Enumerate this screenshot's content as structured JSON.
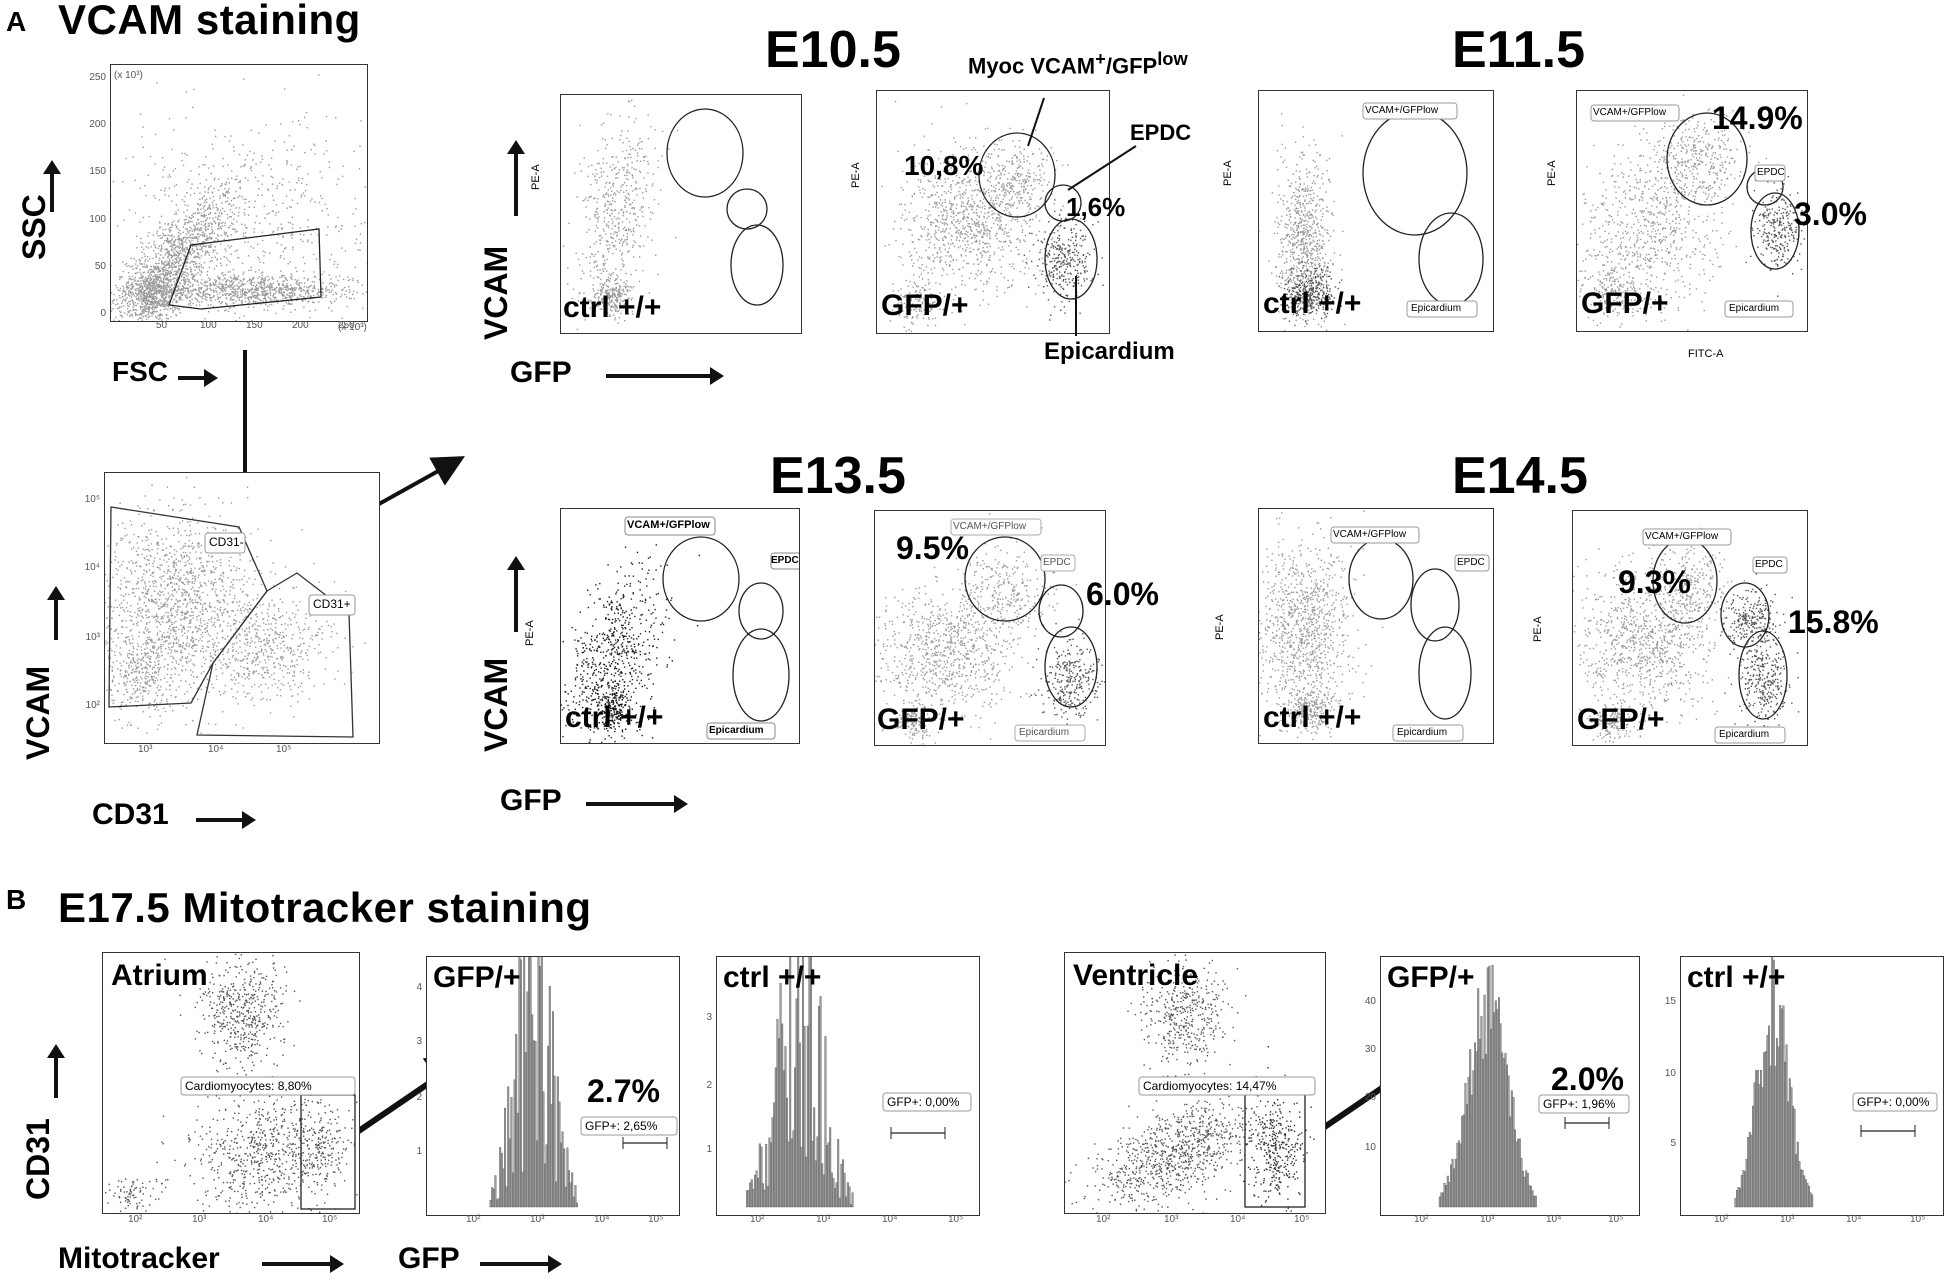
{
  "panel_a": {
    "letter": "A",
    "title": "VCAM staining",
    "fsc_ssc": {
      "ylabel": "SSC",
      "xlabel": "FSC",
      "xunit": "(x 10³)",
      "yunit": "(x 10³)",
      "xticks": [
        "0",
        "50",
        "100",
        "150",
        "200",
        "250"
      ],
      "yticks": [
        "0",
        "50",
        "100",
        "150",
        "200",
        "250"
      ]
    },
    "cd31_vcam": {
      "ylabel": "VCAM",
      "xlabel": "CD31",
      "gate_neg": "CD31-",
      "gate_pos": "CD31+"
    },
    "stages": [
      {
        "name": "E10.5",
        "ctrl": {
          "label": "ctrl +/+",
          "ylabel": "PE-A"
        },
        "gfp": {
          "label": "GFP/+",
          "ylabel": "PE-A",
          "pct_myoc": "10,8%",
          "pct_epdc": "1,6%",
          "callout_myoc_main": "Myoc VCAM",
          "callout_myoc_sup": "+",
          "callout_myoc_mid": "/GFP",
          "callout_myoc_sup2": "low",
          "callout_epdc": "EPDC",
          "callout_epi": "Epicardium"
        }
      },
      {
        "name": "E11.5",
        "ctrl": {
          "label": "ctrl +/+",
          "ylabel": "PE-A",
          "gate_vcam": "VCAM+/GFPlow",
          "gate_epi": "Epicardium"
        },
        "gfp": {
          "label": "GFP/+",
          "ylabel": "PE-A",
          "xlabel": "FITC-A",
          "gate_vcam": "VCAM+/GFPlow",
          "gate_epdc": "EPDC",
          "gate_epi": "Epicardium",
          "pct_myoc": "14.9%",
          "pct_epdc": "3.0%"
        }
      },
      {
        "name": "E13.5",
        "ctrl": {
          "label": "ctrl +/+",
          "ylabel": "PE-A",
          "gate_vcam": "VCAM+/GFPlow",
          "gate_epdc": "EPDC",
          "gate_epi": "Epicardium"
        },
        "gfp": {
          "label": "GFP/+",
          "gate_vcam": "VCAM+/GFPlow",
          "gate_epdc": "EPDC",
          "gate_epi": "Epicardium",
          "pct_myoc": "9.5%",
          "pct_epdc": "6.0%"
        }
      },
      {
        "name": "E14.5",
        "ctrl": {
          "label": "ctrl +/+",
          "ylabel": "PE-A",
          "gate_vcam": "VCAM+/GFPlow",
          "gate_epdc": "EPDC",
          "gate_epi": "Epicardium"
        },
        "gfp": {
          "label": "GFP/+",
          "ylabel": "PE-A",
          "gate_vcam": "VCAM+/GFPlow",
          "gate_epdc": "EPDC",
          "gate_epi": "Epicardium",
          "pct_myoc": "9.3%",
          "pct_epdc": "15.8%"
        }
      }
    ],
    "row_axis": {
      "ylabel": "VCAM",
      "xlabel": "GFP"
    },
    "log_ticks": [
      "10²",
      "10³",
      "10⁴",
      "10⁵"
    ]
  },
  "panel_b": {
    "letter": "B",
    "title": "E17.5 Mitotracker staining",
    "ylabel": "CD31",
    "xlabel_left": "Mitotracker",
    "xlabel_right": "GFP",
    "atrium": {
      "label": "Atrium",
      "gate": "Cardiomyocytes: 8,80%"
    },
    "atrium_gfp": {
      "label": "GFP/+",
      "pct": "2.7%",
      "gate": "GFP+: 2,65%",
      "yticks": [
        "1",
        "2",
        "3",
        "4"
      ]
    },
    "atrium_ctrl": {
      "label": "ctrl +/+",
      "gate": "GFP+: 0,00%",
      "yticks": [
        "1",
        "2",
        "3"
      ]
    },
    "ventricle": {
      "label": "Ventricle",
      "gate": "Cardiomyocytes: 14,47%"
    },
    "ventricle_gfp": {
      "label": "GFP/+",
      "pct": "2.0%",
      "gate": "GFP+: 1,96%",
      "yticks": [
        "10",
        "20",
        "30",
        "40"
      ]
    },
    "ventricle_ctrl": {
      "label": "ctrl +/+",
      "gate": "GFP+: 0,00%",
      "yticks": [
        "5",
        "10",
        "15"
      ]
    },
    "log_ticks": [
      "10²",
      "10³",
      "10⁴",
      "10⁵"
    ]
  },
  "colors": {
    "dots": "#9a9a9a",
    "dots_dark": "#555555",
    "hist_fill": "#9c9c9c",
    "line": "#111111"
  }
}
